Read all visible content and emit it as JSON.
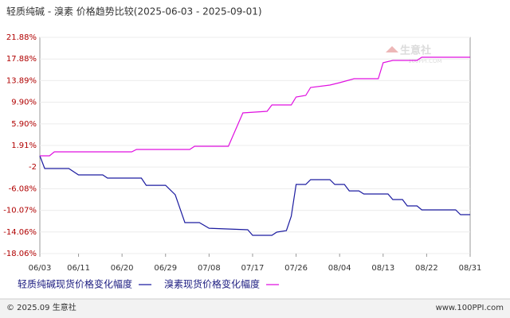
{
  "chart_data": {
    "type": "line",
    "title": "轻质纯碱 - 溴素 价格趋势比较(2025-06-03 - 2025-09-01)",
    "watermark": "生意社",
    "watermark_url": "100PPI.COM",
    "footer_left": "© 2025.09 生意社",
    "footer_right": "www.100PPI.com",
    "xlim": [
      "06/03",
      "08/31"
    ],
    "xticks": [
      "06/03",
      "06/11",
      "06/20",
      "06/29",
      "07/08",
      "07/17",
      "07/26",
      "08/04",
      "08/13",
      "08/22",
      "08/31"
    ],
    "ylim": [
      -18.06,
      21.88
    ],
    "yticks": [
      {
        "value": 21.88,
        "label": "21.88%"
      },
      {
        "value": 17.88,
        "label": "17.88%"
      },
      {
        "value": 13.89,
        "label": "13.89%"
      },
      {
        "value": 9.9,
        "label": "9.90%"
      },
      {
        "value": 5.9,
        "label": "5.90%"
      },
      {
        "value": 1.91,
        "label": "1.91%"
      },
      {
        "value": -2.08,
        "label": "-2"
      },
      {
        "value": -6.08,
        "label": "-6.08%"
      },
      {
        "value": -10.07,
        "label": "-10.07%"
      },
      {
        "value": -14.06,
        "label": "-14.06%"
      },
      {
        "value": -18.06,
        "label": "-18.06%"
      }
    ],
    "grid": true,
    "series": [
      {
        "name": "轻质纯碱现货价格变化幅度",
        "color": "#1c1ca0",
        "x": [
          "06/03",
          "06/04",
          "06/09",
          "06/11",
          "06/16",
          "06/17",
          "06/24",
          "06/25",
          "06/29",
          "07/01",
          "07/03",
          "07/06",
          "07/08",
          "07/16",
          "07/17",
          "07/21",
          "07/22",
          "07/24",
          "07/25",
          "07/26",
          "07/28",
          "07/29",
          "08/02",
          "08/03",
          "08/05",
          "08/06",
          "08/08",
          "08/09",
          "08/14",
          "08/15",
          "08/17",
          "08/18",
          "08/20",
          "08/21",
          "08/28",
          "08/29",
          "08/31"
        ],
        "values": [
          0,
          -2.35,
          -2.35,
          -3.53,
          -3.53,
          -4.11,
          -4.11,
          -5.44,
          -5.44,
          -7.2,
          -12.34,
          -12.34,
          -13.37,
          -13.66,
          -14.69,
          -14.69,
          -14.1,
          -13.81,
          -11.16,
          -5.29,
          -5.29,
          -4.41,
          -4.41,
          -5.29,
          -5.29,
          -6.47,
          -6.47,
          -7.05,
          -7.05,
          -8.08,
          -8.08,
          -9.25,
          -9.25,
          -9.99,
          -9.99,
          -10.87,
          -10.87
        ]
      },
      {
        "name": "溴素现货价格变化幅度",
        "color": "#e010e0",
        "x": [
          "06/03",
          "06/05",
          "06/06",
          "06/22",
          "06/23",
          "07/04",
          "07/05",
          "07/12",
          "07/15",
          "07/20",
          "07/21",
          "07/25",
          "07/26",
          "07/28",
          "07/29",
          "08/02",
          "08/04",
          "08/07",
          "08/12",
          "08/13",
          "08/15",
          "08/20",
          "08/21",
          "08/31"
        ],
        "values": [
          0,
          0,
          0.73,
          0.73,
          1.17,
          1.17,
          1.76,
          1.76,
          7.93,
          8.22,
          9.4,
          9.4,
          10.87,
          11.16,
          12.63,
          13.07,
          13.51,
          14.25,
          14.25,
          17.19,
          17.62,
          17.62,
          18.21,
          18.21
        ]
      }
    ]
  }
}
